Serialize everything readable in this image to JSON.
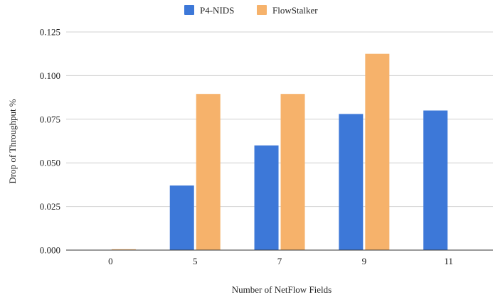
{
  "chart_data": {
    "type": "bar",
    "title": "",
    "xlabel": "Number of NetFlow Fields",
    "ylabel": "Drop of Throughput %",
    "categories": [
      "0",
      "5",
      "7",
      "9",
      "11"
    ],
    "series": [
      {
        "name": "P4-NIDS",
        "color": "#3d78d8",
        "values": [
          0.0,
          0.037,
          0.06,
          0.078,
          0.08
        ]
      },
      {
        "name": "FlowStalker",
        "color": "#f6b26b",
        "values": [
          0.0005,
          0.0895,
          0.0895,
          0.1125,
          0.0
        ]
      }
    ],
    "yticks": [
      "0.000",
      "0.025",
      "0.050",
      "0.075",
      "0.100",
      "0.125"
    ],
    "ylim": [
      0,
      0.125
    ],
    "grid": true,
    "legend_position": "top-center"
  }
}
